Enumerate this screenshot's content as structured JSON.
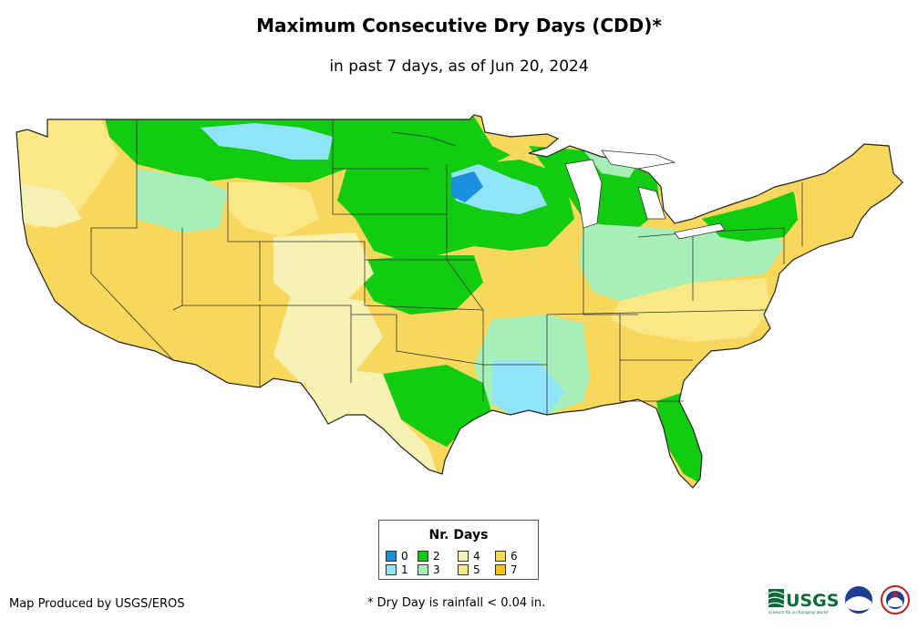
{
  "title": "Maximum Consecutive Dry Days (CDD)*",
  "subtitle": "in past 7 days, as of Jun 20, 2024",
  "legend": {
    "title": "Nr. Days",
    "items": [
      {
        "label": "0",
        "color": "#1a8fe0"
      },
      {
        "label": "1",
        "color": "#8fe4f7"
      },
      {
        "label": "2",
        "color": "#11cc11"
      },
      {
        "label": "3",
        "color": "#a7efb8"
      },
      {
        "label": "4",
        "color": "#f6f2b4"
      },
      {
        "label": "5",
        "color": "#fbe886"
      },
      {
        "label": "6",
        "color": "#f8d75d"
      },
      {
        "label": "7",
        "color": "#f7c21a"
      }
    ]
  },
  "credit": "Map Produced by USGS/EROS",
  "footnote": "* Dry Day is rainfall < 0.04 in.",
  "logos": {
    "usgs": "USGS",
    "usgs_tagline": "science for a changing world",
    "noaa": "noaa"
  }
}
